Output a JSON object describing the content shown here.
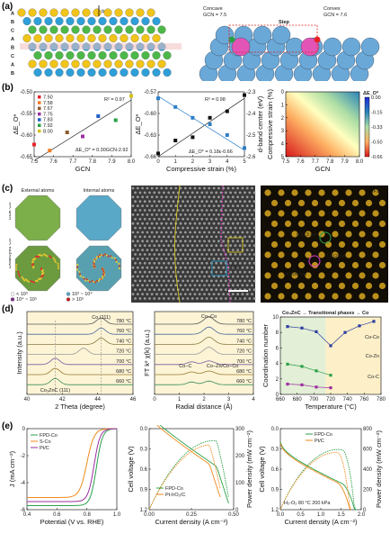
{
  "panels": {
    "a": {
      "label": "(a)",
      "vector_b": "b",
      "layer_letters": [
        "A",
        "B",
        "C",
        "A",
        "B",
        "C",
        "A",
        "B"
      ],
      "concave": "Concave GCN = 7.5",
      "convex": "Convex GCN = 7.6",
      "step": "Step"
    },
    "b": {
      "label": "(b)"
    },
    "c": {
      "label": "(c)",
      "external": "External atoms",
      "internal": "Internal atoms",
      "row1": "Bulk Co",
      "row2": "Dealloyed Co",
      "legend": [
        "< 10³",
        "10³ ~ 10⁴",
        "10⁴ ~ 10⁵",
        "> 10⁵"
      ],
      "scale_bar": "1 nm",
      "step": "Step",
      "f1": "F1",
      "d1": "0.213 nm",
      "d2": "0.212 nm",
      "d3": "0.206 nm"
    },
    "d": {
      "label": "(d)"
    },
    "e": {
      "label": "(e)"
    }
  },
  "chart_data": [
    {
      "type": "scatter",
      "id": "b1",
      "xlabel": "GCN",
      "ylabel": "ΔE_O*",
      "xlim": [
        7.5,
        8.0
      ],
      "ylim": [
        -0.66,
        -0.5
      ],
      "xticks": [
        "7.5",
        "7.6",
        "7.7",
        "7.8",
        "7.9",
        "8.0"
      ],
      "yticks": [
        "-0.50",
        "-0.55",
        "-0.60",
        "-0.65"
      ],
      "legend": [
        "7.50",
        "7.58",
        "7.67",
        "7.75",
        "7.83",
        "7.92",
        "8.00"
      ],
      "legend_colors": [
        "#e8212b",
        "#f07a22",
        "#8b5a2b",
        "#9b2fa0",
        "#1f5fc4",
        "#2aa04a",
        "#d5c21c"
      ],
      "x": [
        7.5,
        7.58,
        7.67,
        7.75,
        7.83,
        7.92,
        8.0
      ],
      "y": [
        -0.63,
        -0.645,
        -0.6,
        -0.61,
        -0.56,
        -0.57,
        -0.51
      ],
      "fit": [
        [
          7.5,
          -0.67
        ],
        [
          8.0,
          -0.52
        ]
      ],
      "r2": "R² = 0.97",
      "equation": "ΔE_O* = 0.30GCN-2.92"
    },
    {
      "type": "scatter",
      "id": "b2",
      "xlabel": "Compressive strain (%)",
      "ylabel": "ΔE_O*",
      "ylabel2": "d-band center (eV)",
      "xlim": [
        0,
        5
      ],
      "ylim": [
        -0.66,
        -0.56
      ],
      "ylim2": [
        -2.6,
        -2.3
      ],
      "xticks": [
        "0",
        "1",
        "2",
        "3",
        "4",
        "5"
      ],
      "yticks": [
        "-0.57",
        "-0.60",
        "-0.63",
        "-0.66"
      ],
      "yticks2": [
        "-2.3",
        "-2.4",
        "-2.5",
        "-2.6"
      ],
      "x": [
        0,
        1,
        2,
        3,
        4,
        5
      ],
      "y": [
        -0.655,
        -0.635,
        -0.63,
        -0.6,
        -0.59,
        -0.565
      ],
      "y2": [
        -2.33,
        -2.37,
        -2.42,
        -2.45,
        -2.5,
        -2.56
      ],
      "r2": "R² = 0.98",
      "equation": "ΔE_O* = 0.18ε-0.66"
    },
    {
      "type": "heatmap",
      "id": "b3",
      "xlabel": "GCN",
      "ylabel": "Compressive strain (%)",
      "colorbar_title": "ΔE_O*",
      "xlim": [
        7.5,
        8.0
      ],
      "ylim": [
        0,
        5
      ],
      "zlim": [
        -0.66,
        0.0
      ],
      "xticks": [
        "7.5",
        "7.6",
        "7.7",
        "7.8",
        "7.9",
        "8.0"
      ],
      "yticks": [
        "0",
        "1",
        "2",
        "3",
        "4",
        "5"
      ],
      "cbticks": [
        "0.00",
        "-0.15",
        "-0.33",
        "-0.50",
        "-0.66"
      ]
    },
    {
      "type": "line",
      "id": "d1",
      "xlabel": "2 Theta (degree)",
      "ylabel": "Intensity (a.u.)",
      "xlim": [
        40,
        46
      ],
      "xticks": [
        "40",
        "42",
        "44",
        "46"
      ],
      "peak_top": "Co (111)",
      "peak_bottom": "Co₃ZnC (111)",
      "series": [
        {
          "name": "780 °C"
        },
        {
          "name": "760 °C"
        },
        {
          "name": "740 °C"
        },
        {
          "name": "720 °C"
        },
        {
          "name": "700 °C"
        },
        {
          "name": "680 °C"
        },
        {
          "name": "660 °C"
        }
      ]
    },
    {
      "type": "line",
      "id": "d2",
      "xlabel": "Radial distance (Å)",
      "ylabel": "FT k² χ(k) (a.u.)",
      "xlim": [
        0,
        4
      ],
      "xticks": [
        "0",
        "1",
        "2",
        "3",
        "4"
      ],
      "label_top": "Co−Co",
      "label_cz": "Co−C",
      "label_zn": "Co−Zn/Co−Co",
      "series": [
        {
          "name": "780 °C"
        },
        {
          "name": "760 °C"
        },
        {
          "name": "740 °C"
        },
        {
          "name": "720 °C"
        },
        {
          "name": "700 °C"
        },
        {
          "name": "680 °C"
        },
        {
          "name": "660 °C"
        }
      ]
    },
    {
      "type": "scatter",
      "id": "d3",
      "xlabel": "Temperature (°C)",
      "ylabel": "Coordination number",
      "xlim": [
        650,
        790
      ],
      "xticks": [
        "660",
        "680",
        "700",
        "720",
        "740",
        "760",
        "780"
      ],
      "yticks": [
        "0",
        "2",
        "4",
        "6",
        "8",
        "10"
      ],
      "header": "Co₃ZnC → Transitional phases → Co",
      "series": [
        {
          "name": "Co-Co",
          "x": [
            660,
            680,
            700,
            720,
            740,
            760,
            780
          ],
          "y": [
            9.2,
            9.0,
            8.5,
            6.6,
            8.4,
            9.3,
            9.9
          ]
        },
        {
          "name": "Co-Zn",
          "x": [
            660,
            680,
            700,
            720
          ],
          "y": [
            4.1,
            3.8,
            3.2,
            2.6
          ]
        },
        {
          "name": "Co-C",
          "x": [
            660,
            680,
            700,
            720
          ],
          "y": [
            1.4,
            1.3,
            1.0,
            0.9
          ]
        }
      ]
    },
    {
      "type": "line",
      "id": "e1",
      "xlabel": "Potential (V vs. RHE)",
      "ylabel": "J (mA cm⁻²)",
      "xlim": [
        0.3,
        1.05
      ],
      "ylim": [
        -6,
        0
      ],
      "xticks": [
        "0.4",
        "0.6",
        "0.8",
        "1.0"
      ],
      "yticks": [
        "0",
        "-2",
        "-4",
        "-6"
      ],
      "series": [
        {
          "name": "FPD-Co",
          "color": "#2aa04a"
        },
        {
          "name": "S-Co",
          "color": "#f08a1c"
        },
        {
          "name": "Pt/C",
          "color": "#9b2fa0"
        }
      ]
    },
    {
      "type": "line",
      "id": "e2",
      "xlabel": "Current density (A cm⁻²)",
      "ylabel": "Cell voltage (V)",
      "ylabel2": "Power density (mW cm⁻²)",
      "xlim": [
        0,
        0.5
      ],
      "ylim": [
        0,
        1.2
      ],
      "ylim2": [
        0,
        300
      ],
      "xticks": [
        "0.00",
        "0.25",
        "0.50"
      ],
      "yticks": [
        "0.0",
        "0.3",
        "0.6",
        "0.9",
        "1.2"
      ],
      "yticks2": [
        "0",
        "100",
        "200",
        "300"
      ],
      "series": [
        {
          "name": "FPD-Co",
          "color": "#2aa04a"
        },
        {
          "name": "Pt-IrO₂/C",
          "color": "#f08a1c"
        }
      ]
    },
    {
      "type": "line",
      "id": "e3",
      "xlabel": "Current density (A cm⁻²)",
      "ylabel": "Cell voltage (V)",
      "ylabel2": "Power density (mW cm⁻²)",
      "xlim": [
        0,
        2.0
      ],
      "ylim": [
        0,
        1.2
      ],
      "ylim2": [
        0,
        800
      ],
      "xticks": [
        "0.0",
        "0.5",
        "1.0",
        "1.5",
        "2.0"
      ],
      "yticks": [
        "0.0",
        "0.3",
        "0.6",
        "0.9",
        "1.2"
      ],
      "yticks2": [
        "0",
        "200",
        "400",
        "600",
        "800"
      ],
      "conditions": "H₂-O₂   80 °C   200 kPa",
      "series": [
        {
          "name": "FPD-Co",
          "color": "#2aa04a"
        },
        {
          "name": "Pt/C",
          "color": "#f08a1c"
        }
      ]
    }
  ]
}
